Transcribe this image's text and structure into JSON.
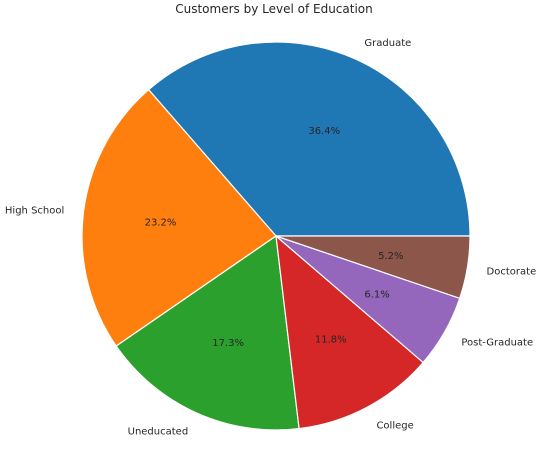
{
  "chart_data": {
    "type": "pie",
    "title": "Customers by Level of Education",
    "categories": [
      "Graduate",
      "High School",
      "Uneducated",
      "College",
      "Post-Graduate",
      "Doctorate"
    ],
    "values": [
      36.4,
      23.2,
      17.3,
      11.8,
      6.1,
      5.2
    ],
    "percent_labels": [
      "36.4%",
      "23.2%",
      "17.3%",
      "11.8%",
      "6.1%",
      "5.2%"
    ],
    "colors": [
      "#1f77b4",
      "#ff7f0e",
      "#2ca02c",
      "#d62728",
      "#9467bd",
      "#8c564b"
    ],
    "start_angle_deg": 0,
    "direction": "counterclockwise",
    "edge_color": "#ffffff"
  }
}
